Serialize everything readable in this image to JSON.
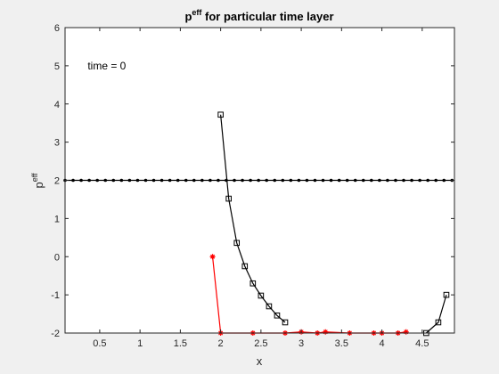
{
  "chart_data": {
    "type": "line",
    "title": {
      "main": "p",
      "sup": "eff",
      "rest": " for particular time layer"
    },
    "xlabel": "x",
    "ylabel": {
      "main": "p",
      "sup": "eff"
    },
    "xlim": [
      0.07,
      4.9
    ],
    "ylim": [
      -2,
      6
    ],
    "xticks": [
      0.5,
      1,
      1.5,
      2,
      2.5,
      3,
      3.5,
      4,
      4.5
    ],
    "yticks": [
      -2,
      -1,
      0,
      1,
      2,
      3,
      4,
      5,
      6
    ],
    "grid": false,
    "annotation": {
      "text": "time = 0",
      "x": 0.35,
      "y": 5
    },
    "series": [
      {
        "marker": "dot",
        "color": "#000000",
        "x": [
          0.07,
          0.17,
          0.27,
          0.37,
          0.47,
          0.57,
          0.67,
          0.77,
          0.87,
          0.97,
          1.07,
          1.17,
          1.27,
          1.37,
          1.47,
          1.57,
          1.67,
          1.77,
          1.87,
          1.97,
          2.07,
          2.17,
          2.27,
          2.37,
          2.47,
          2.57,
          2.67,
          2.77,
          2.87,
          2.97,
          3.07,
          3.17,
          3.27,
          3.37,
          3.47,
          3.57,
          3.67,
          3.77,
          3.87,
          3.97,
          4.07,
          4.17,
          4.27,
          4.37,
          4.47,
          4.57,
          4.67,
          4.77,
          4.87
        ],
        "y": [
          2,
          2,
          2,
          2,
          2,
          2,
          2,
          2,
          2,
          2,
          2,
          2,
          2,
          2,
          2,
          2,
          2,
          2,
          2,
          2,
          2,
          2,
          2,
          2,
          2,
          2,
          2,
          2,
          2,
          2,
          2,
          2,
          2,
          2,
          2,
          2,
          2,
          2,
          2,
          2,
          2,
          2,
          2,
          2,
          2,
          2,
          2,
          2,
          2
        ]
      },
      {
        "marker": "square",
        "color": "#000000",
        "x": [
          2.0,
          2.1,
          2.2,
          2.3,
          2.4,
          2.5,
          2.6,
          2.7,
          2.8
        ],
        "y": [
          3.72,
          1.52,
          0.36,
          -0.25,
          -0.7,
          -1.02,
          -1.3,
          -1.54,
          -1.72
        ]
      },
      {
        "marker": "square",
        "color": "#000000",
        "x": [
          4.55,
          4.7,
          4.8
        ],
        "y": [
          -2.0,
          -1.72,
          -1.0
        ]
      },
      {
        "marker": "star",
        "color": "#ff0000",
        "x": [
          1.9,
          2.0,
          2.4,
          2.8,
          3.0,
          3.2,
          3.3,
          3.6,
          3.9,
          4.0,
          4.2,
          4.3
        ],
        "y": [
          0,
          -2,
          -2,
          -2,
          -1.97,
          -2,
          -1.97,
          -2,
          -2,
          -2,
          -2,
          -1.97
        ]
      }
    ]
  }
}
